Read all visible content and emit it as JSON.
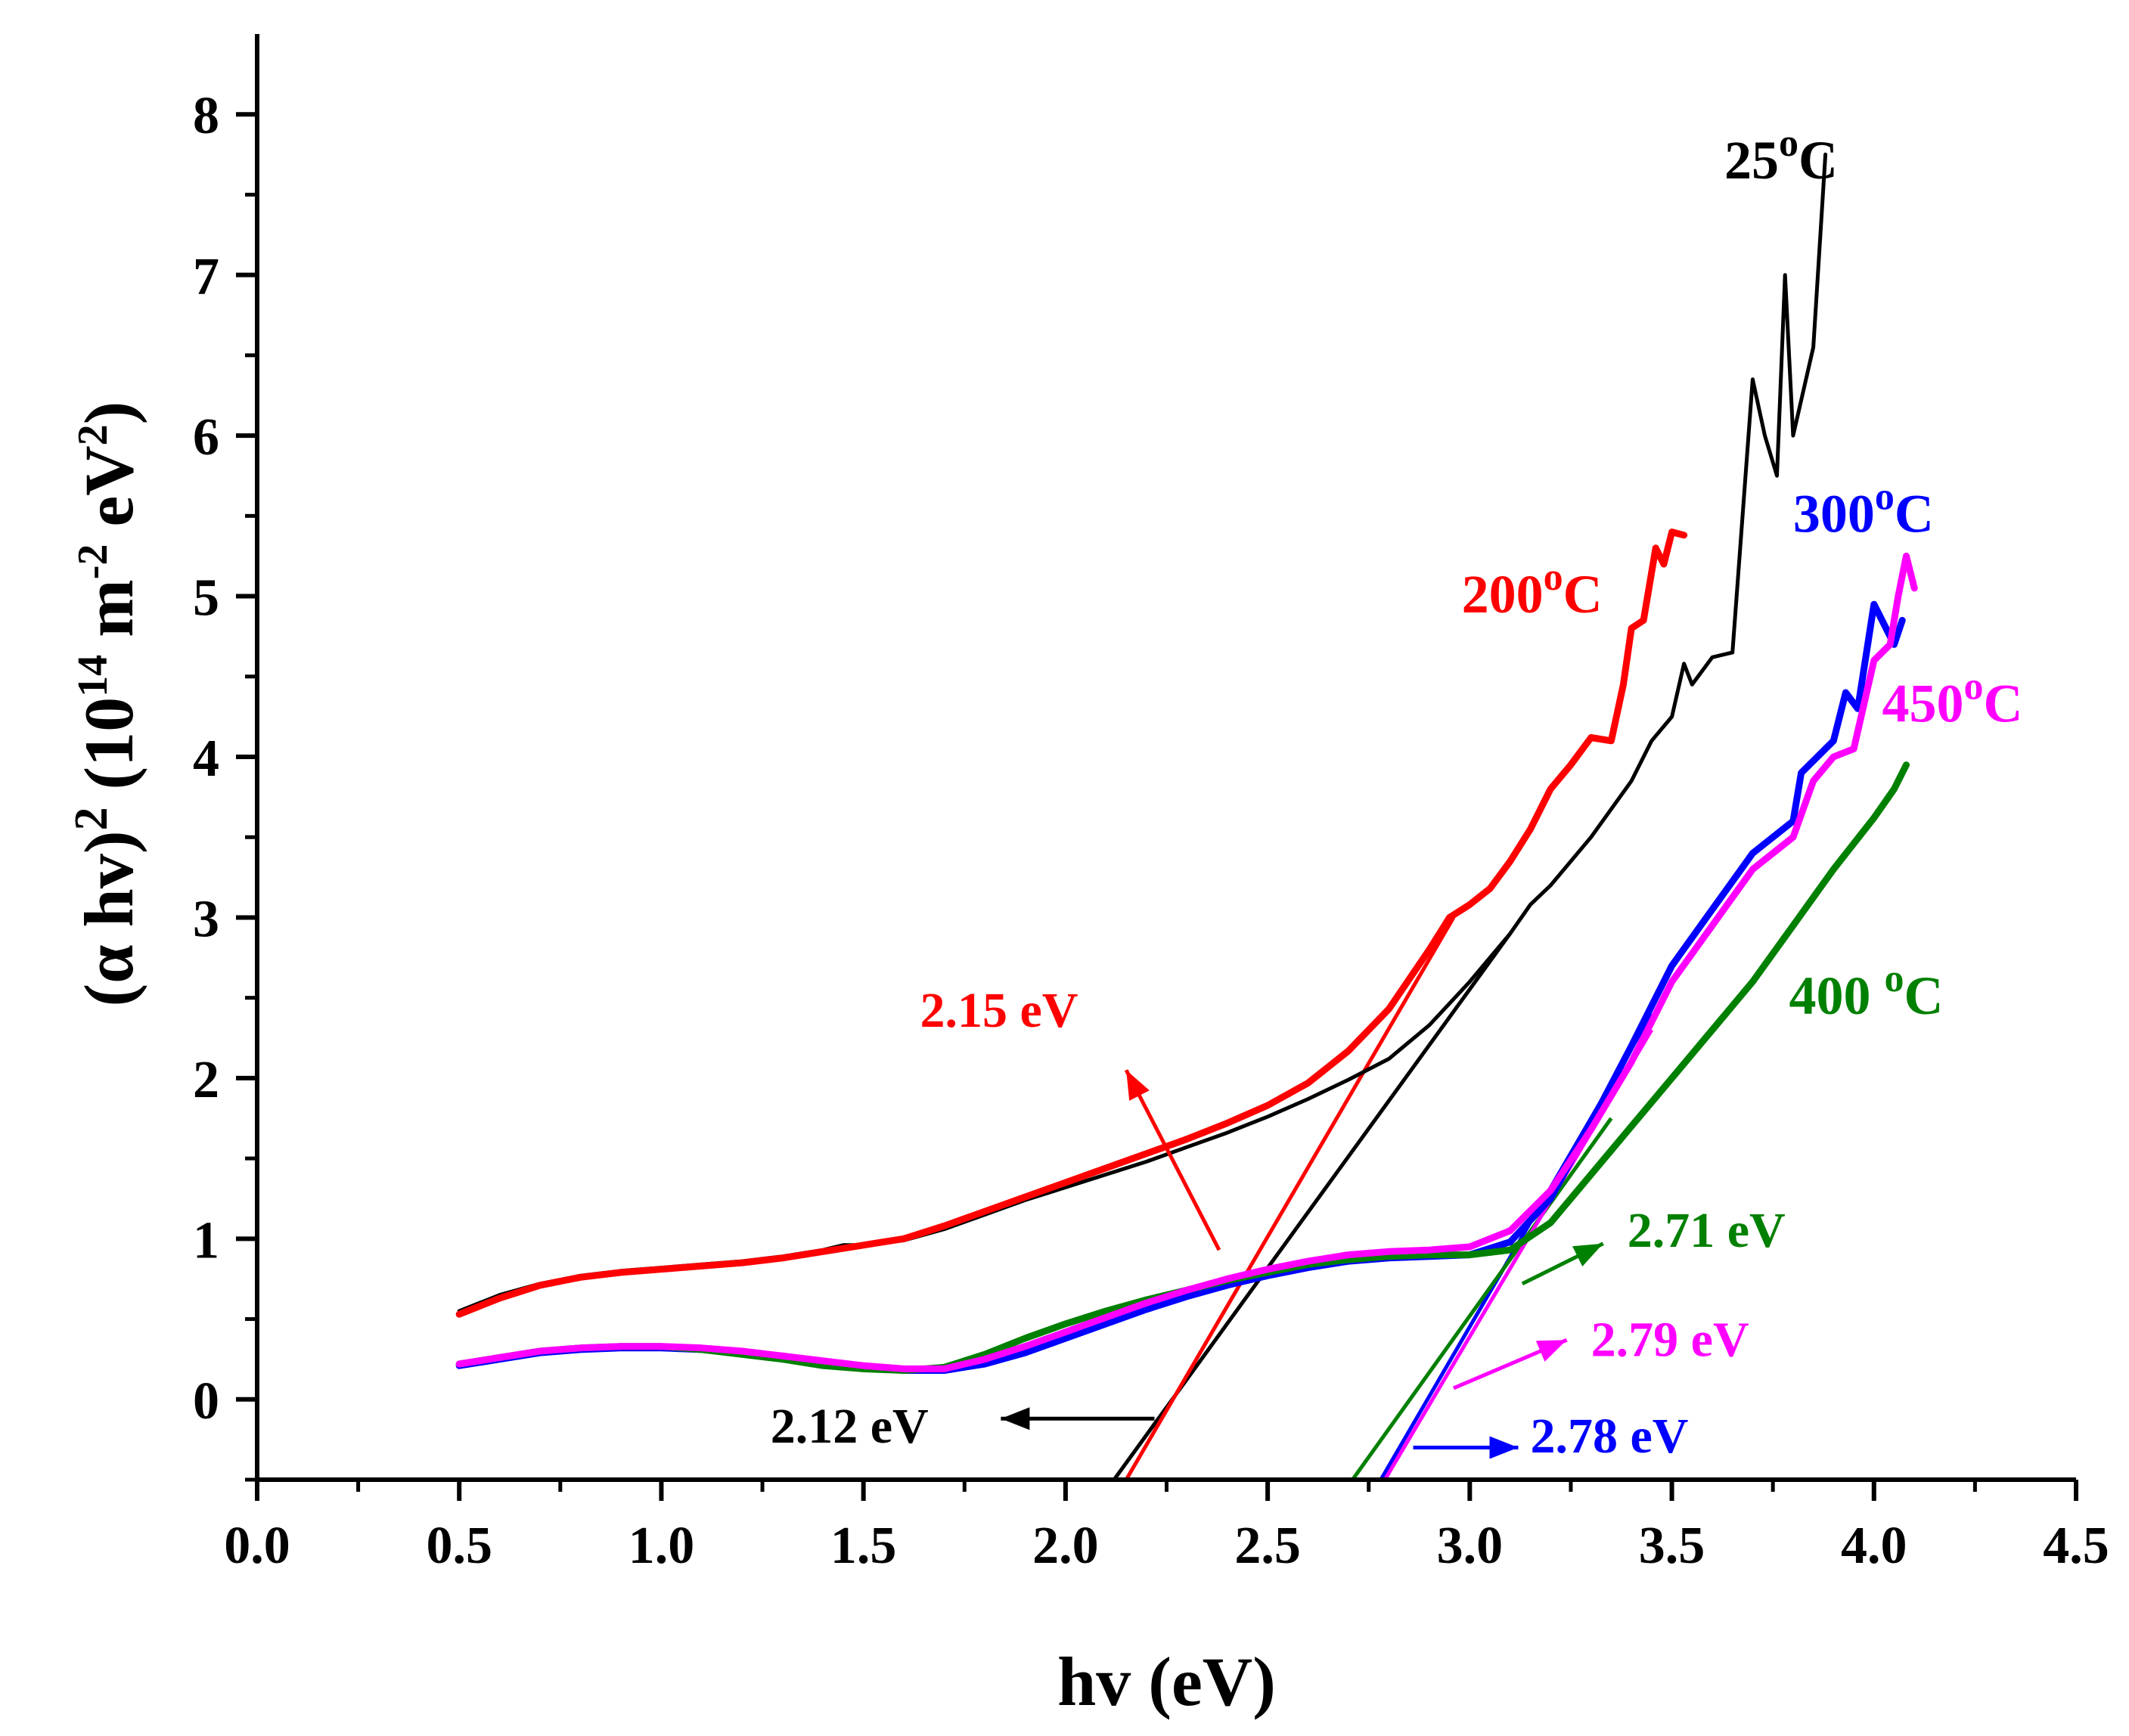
{
  "chart_data": {
    "type": "line",
    "title": "",
    "xlabel": "hv (eV)",
    "ylabel": {
      "base": "(α hv)",
      "exp": "2",
      "unit_a": " (10",
      "unit_b": "14",
      "unit_c": " m",
      "unit_d": "-2",
      "unit_e": " eV",
      "unit_f": "2",
      "unit_g": ")"
    },
    "xlim": [
      0.0,
      4.5
    ],
    "ylim": [
      -0.5,
      8.5
    ],
    "x_ticks": [
      "0.0",
      "0.5",
      "1.0",
      "1.5",
      "2.0",
      "2.5",
      "3.0",
      "3.5",
      "4.0",
      "4.5"
    ],
    "y_ticks": [
      "0",
      "1",
      "2",
      "3",
      "4",
      "5",
      "6",
      "7",
      "8"
    ],
    "grid": false,
    "series": [
      {
        "name": "25°C",
        "label": {
          "main": "25",
          "sup": "o",
          "unit": "C",
          "at": [
            3.63,
            7.6
          ]
        },
        "color": "#000000",
        "points": [
          [
            0.5,
            0.55
          ],
          [
            0.6,
            0.65
          ],
          [
            0.7,
            0.72
          ],
          [
            0.8,
            0.77
          ],
          [
            0.9,
            0.8
          ],
          [
            1.0,
            0.82
          ],
          [
            1.1,
            0.84
          ],
          [
            1.2,
            0.86
          ],
          [
            1.3,
            0.89
          ],
          [
            1.4,
            0.93
          ],
          [
            1.45,
            0.96
          ],
          [
            1.5,
            0.96
          ],
          [
            1.6,
            0.99
          ],
          [
            1.7,
            1.06
          ],
          [
            1.8,
            1.15
          ],
          [
            1.9,
            1.24
          ],
          [
            2.0,
            1.32
          ],
          [
            2.1,
            1.4
          ],
          [
            2.2,
            1.48
          ],
          [
            2.3,
            1.57
          ],
          [
            2.4,
            1.66
          ],
          [
            2.5,
            1.76
          ],
          [
            2.6,
            1.87
          ],
          [
            2.7,
            1.99
          ],
          [
            2.8,
            2.12
          ],
          [
            2.9,
            2.33
          ],
          [
            3.0,
            2.6
          ],
          [
            3.1,
            2.9
          ],
          [
            3.15,
            3.08
          ],
          [
            3.2,
            3.2
          ],
          [
            3.3,
            3.5
          ],
          [
            3.4,
            3.85
          ],
          [
            3.45,
            4.1
          ],
          [
            3.5,
            4.25
          ],
          [
            3.53,
            4.58
          ],
          [
            3.55,
            4.45
          ],
          [
            3.6,
            4.62
          ],
          [
            3.65,
            4.65
          ],
          [
            3.7,
            6.35
          ],
          [
            3.73,
            6.0
          ],
          [
            3.76,
            5.75
          ],
          [
            3.78,
            7.0
          ],
          [
            3.8,
            6.0
          ],
          [
            3.85,
            6.55
          ],
          [
            3.88,
            7.75
          ]
        ]
      },
      {
        "name": "200°C",
        "label": {
          "main": "200",
          "sup": "o",
          "unit": "C",
          "at": [
            2.98,
            4.9
          ]
        },
        "color": "#ff0000",
        "points": [
          [
            0.5,
            0.53
          ],
          [
            0.6,
            0.63
          ],
          [
            0.7,
            0.71
          ],
          [
            0.8,
            0.76
          ],
          [
            0.9,
            0.79
          ],
          [
            1.0,
            0.81
          ],
          [
            1.1,
            0.83
          ],
          [
            1.2,
            0.85
          ],
          [
            1.3,
            0.88
          ],
          [
            1.4,
            0.92
          ],
          [
            1.5,
            0.96
          ],
          [
            1.6,
            1.0
          ],
          [
            1.7,
            1.08
          ],
          [
            1.8,
            1.17
          ],
          [
            1.9,
            1.26
          ],
          [
            2.0,
            1.35
          ],
          [
            2.1,
            1.44
          ],
          [
            2.2,
            1.53
          ],
          [
            2.3,
            1.62
          ],
          [
            2.4,
            1.72
          ],
          [
            2.5,
            1.83
          ],
          [
            2.6,
            1.97
          ],
          [
            2.7,
            2.17
          ],
          [
            2.8,
            2.43
          ],
          [
            2.9,
            2.8
          ],
          [
            2.95,
            3.0
          ],
          [
            3.0,
            3.08
          ],
          [
            3.05,
            3.18
          ],
          [
            3.1,
            3.35
          ],
          [
            3.15,
            3.55
          ],
          [
            3.2,
            3.8
          ],
          [
            3.25,
            3.95
          ],
          [
            3.3,
            4.12
          ],
          [
            3.35,
            4.1
          ],
          [
            3.38,
            4.45
          ],
          [
            3.4,
            4.8
          ],
          [
            3.43,
            4.85
          ],
          [
            3.46,
            5.3
          ],
          [
            3.48,
            5.2
          ],
          [
            3.5,
            5.4
          ],
          [
            3.53,
            5.38
          ]
        ]
      },
      {
        "name": "300°C",
        "label": {
          "main": "300",
          "sup": "o",
          "unit": "C",
          "at": [
            3.8,
            5.4
          ]
        },
        "color": "#0000ff",
        "points": [
          [
            0.5,
            0.21
          ],
          [
            0.6,
            0.25
          ],
          [
            0.7,
            0.29
          ],
          [
            0.8,
            0.31
          ],
          [
            0.9,
            0.32
          ],
          [
            1.0,
            0.32
          ],
          [
            1.1,
            0.31
          ],
          [
            1.2,
            0.29
          ],
          [
            1.3,
            0.26
          ],
          [
            1.4,
            0.23
          ],
          [
            1.5,
            0.2
          ],
          [
            1.6,
            0.18
          ],
          [
            1.7,
            0.18
          ],
          [
            1.8,
            0.22
          ],
          [
            1.9,
            0.29
          ],
          [
            2.0,
            0.38
          ],
          [
            2.1,
            0.47
          ],
          [
            2.2,
            0.56
          ],
          [
            2.3,
            0.64
          ],
          [
            2.4,
            0.71
          ],
          [
            2.5,
            0.77
          ],
          [
            2.6,
            0.82
          ],
          [
            2.7,
            0.86
          ],
          [
            2.8,
            0.88
          ],
          [
            2.9,
            0.89
          ],
          [
            3.0,
            0.9
          ],
          [
            3.1,
            0.98
          ],
          [
            3.2,
            1.25
          ],
          [
            3.3,
            1.72
          ],
          [
            3.4,
            2.2
          ],
          [
            3.5,
            2.7
          ],
          [
            3.6,
            3.05
          ],
          [
            3.7,
            3.4
          ],
          [
            3.8,
            3.6
          ],
          [
            3.82,
            3.9
          ],
          [
            3.9,
            4.1
          ],
          [
            3.93,
            4.4
          ],
          [
            3.96,
            4.3
          ],
          [
            4.0,
            4.95
          ],
          [
            4.05,
            4.7
          ],
          [
            4.07,
            4.85
          ]
        ]
      },
      {
        "name": "400°C",
        "label": {
          "main": "400 ",
          "sup": "o",
          "unit": "C",
          "at": [
            3.79,
            2.4
          ]
        },
        "color": "#008000",
        "points": [
          [
            0.5,
            0.22
          ],
          [
            0.6,
            0.26
          ],
          [
            0.7,
            0.3
          ],
          [
            0.8,
            0.32
          ],
          [
            0.9,
            0.33
          ],
          [
            1.0,
            0.33
          ],
          [
            1.1,
            0.31
          ],
          [
            1.2,
            0.28
          ],
          [
            1.3,
            0.25
          ],
          [
            1.4,
            0.21
          ],
          [
            1.5,
            0.19
          ],
          [
            1.6,
            0.18
          ],
          [
            1.7,
            0.2
          ],
          [
            1.8,
            0.28
          ],
          [
            1.9,
            0.38
          ],
          [
            2.0,
            0.47
          ],
          [
            2.1,
            0.55
          ],
          [
            2.2,
            0.62
          ],
          [
            2.3,
            0.68
          ],
          [
            2.4,
            0.74
          ],
          [
            2.5,
            0.79
          ],
          [
            2.6,
            0.84
          ],
          [
            2.7,
            0.87
          ],
          [
            2.8,
            0.89
          ],
          [
            2.9,
            0.9
          ],
          [
            3.0,
            0.9
          ],
          [
            3.1,
            0.93
          ],
          [
            3.2,
            1.1
          ],
          [
            3.3,
            1.4
          ],
          [
            3.4,
            1.7
          ],
          [
            3.5,
            2.0
          ],
          [
            3.6,
            2.3
          ],
          [
            3.7,
            2.6
          ],
          [
            3.8,
            2.95
          ],
          [
            3.9,
            3.3
          ],
          [
            4.0,
            3.62
          ],
          [
            4.05,
            3.8
          ],
          [
            4.08,
            3.95
          ]
        ]
      },
      {
        "name": "450°C",
        "label": {
          "main": "450",
          "sup": "o",
          "unit": "C",
          "at": [
            4.02,
            4.22
          ]
        },
        "color": "#ff00ff",
        "points": [
          [
            0.5,
            0.22
          ],
          [
            0.6,
            0.26
          ],
          [
            0.7,
            0.3
          ],
          [
            0.8,
            0.32
          ],
          [
            0.9,
            0.33
          ],
          [
            1.0,
            0.33
          ],
          [
            1.1,
            0.32
          ],
          [
            1.2,
            0.3
          ],
          [
            1.3,
            0.27
          ],
          [
            1.4,
            0.24
          ],
          [
            1.5,
            0.21
          ],
          [
            1.6,
            0.19
          ],
          [
            1.7,
            0.19
          ],
          [
            1.8,
            0.25
          ],
          [
            1.9,
            0.33
          ],
          [
            2.0,
            0.42
          ],
          [
            2.1,
            0.51
          ],
          [
            2.2,
            0.6
          ],
          [
            2.3,
            0.68
          ],
          [
            2.4,
            0.75
          ],
          [
            2.5,
            0.81
          ],
          [
            2.6,
            0.86
          ],
          [
            2.7,
            0.9
          ],
          [
            2.8,
            0.92
          ],
          [
            2.9,
            0.93
          ],
          [
            3.0,
            0.95
          ],
          [
            3.1,
            1.05
          ],
          [
            3.2,
            1.3
          ],
          [
            3.3,
            1.68
          ],
          [
            3.4,
            2.1
          ],
          [
            3.5,
            2.6
          ],
          [
            3.6,
            2.95
          ],
          [
            3.7,
            3.3
          ],
          [
            3.8,
            3.5
          ],
          [
            3.85,
            3.85
          ],
          [
            3.9,
            4.0
          ],
          [
            3.95,
            4.05
          ],
          [
            4.0,
            4.6
          ],
          [
            4.04,
            4.7
          ],
          [
            4.06,
            5.0
          ],
          [
            4.08,
            5.25
          ],
          [
            4.1,
            5.05
          ]
        ]
      }
    ],
    "fit_lines": [
      {
        "name": "tangent-25C",
        "color": "#000000",
        "from": [
          2.12,
          -0.5
        ],
        "to": [
          3.1,
          2.9
        ]
      },
      {
        "name": "tangent-200C",
        "color": "#ff0000",
        "from": [
          2.15,
          -0.5
        ],
        "to": [
          2.96,
          3.0
        ]
      },
      {
        "name": "tangent-300C",
        "color": "#0000ff",
        "from": [
          2.78,
          -0.5
        ],
        "to": [
          3.45,
          2.4
        ]
      },
      {
        "name": "tangent-400C",
        "color": "#008000",
        "from": [
          2.71,
          -0.5
        ],
        "to": [
          3.35,
          1.75
        ]
      },
      {
        "name": "tangent-450C",
        "color": "#ff00ff",
        "from": [
          2.79,
          -0.5
        ],
        "to": [
          3.45,
          2.3
        ]
      }
    ],
    "annotations": [
      {
        "name": "gap-2.12",
        "text": "2.12 eV",
        "color": "#000000",
        "arrow_from": [
          2.22,
          -0.12
        ],
        "arrow_to": [
          1.84,
          -0.12
        ],
        "text_at": [
          1.27,
          -0.27
        ]
      },
      {
        "name": "gap-2.15",
        "text": "2.15 eV",
        "color": "#ff0000",
        "arrow_from": [
          2.38,
          0.93
        ],
        "arrow_to": [
          2.15,
          2.05
        ],
        "text_at": [
          1.64,
          2.32
        ]
      },
      {
        "name": "gap-2.71",
        "text": "2.71 eV",
        "color": "#008000",
        "arrow_from": [
          3.13,
          0.72
        ],
        "arrow_to": [
          3.33,
          0.97
        ],
        "text_at": [
          3.39,
          0.95
        ]
      },
      {
        "name": "gap-2.79",
        "text": "2.79 eV",
        "color": "#ff00ff",
        "arrow_from": [
          2.96,
          0.07
        ],
        "arrow_to": [
          3.24,
          0.37
        ],
        "text_at": [
          3.3,
          0.27
        ]
      },
      {
        "name": "gap-2.78",
        "text": "2.78 eV",
        "color": "#0000ff",
        "arrow_from": [
          2.86,
          -0.3
        ],
        "arrow_to": [
          3.12,
          -0.3
        ],
        "text_at": [
          3.15,
          -0.33
        ]
      }
    ]
  }
}
